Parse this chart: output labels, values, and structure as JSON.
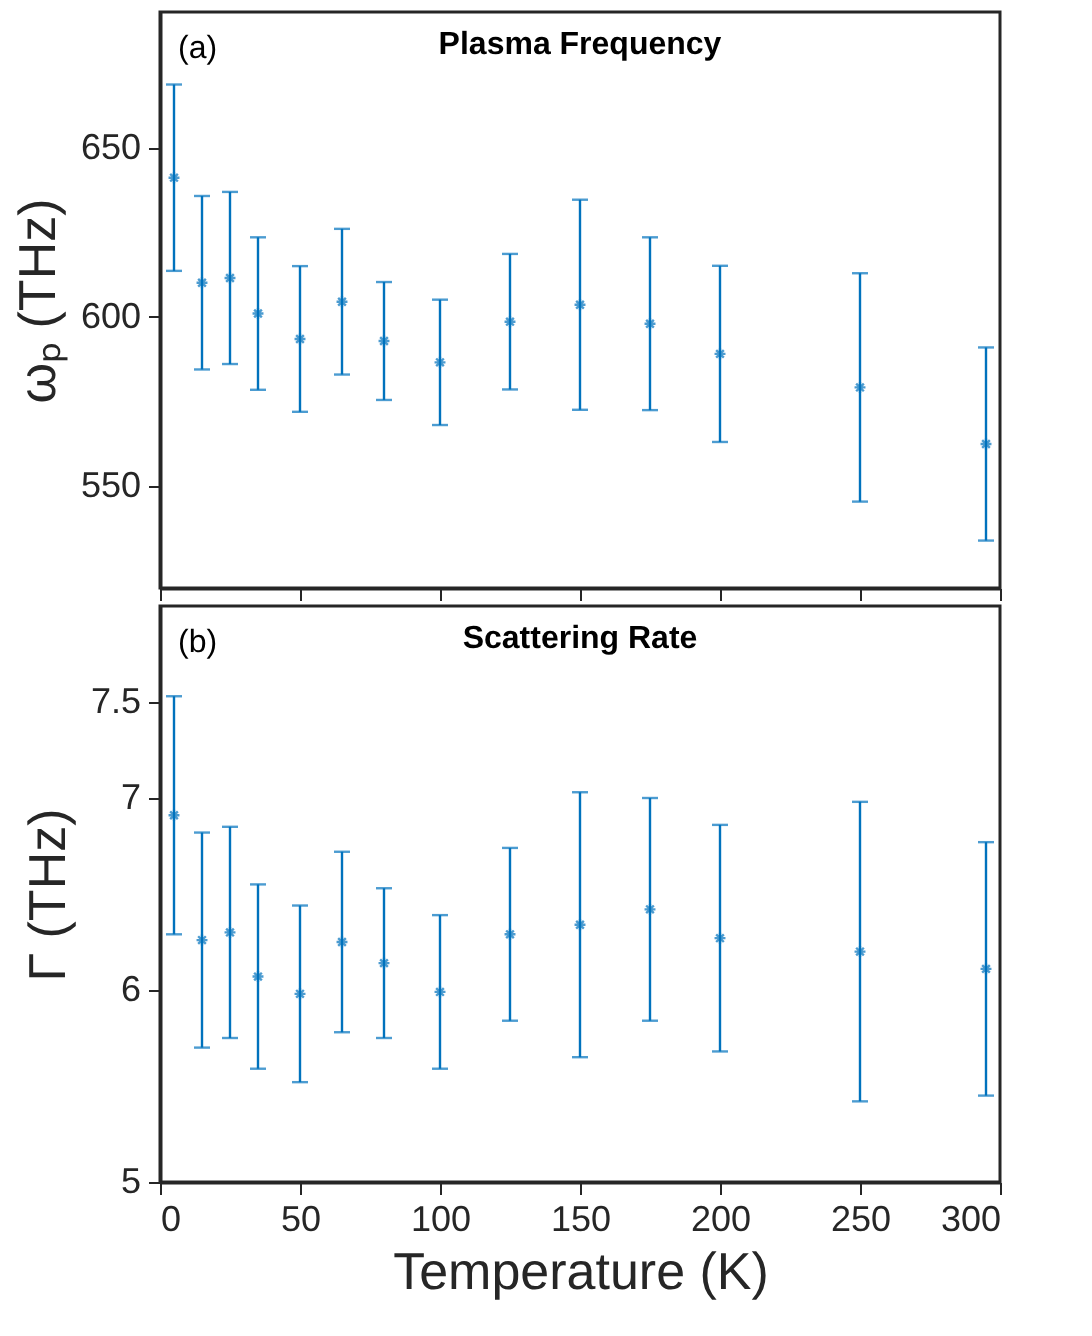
{
  "chart_data": [
    {
      "type": "scatter",
      "title": "Plasma Frequency",
      "ylabel": "ωₚ (THz)",
      "annotations": [
        "(a)"
      ],
      "color": "#0072bd",
      "marker": "cross",
      "x": [
        5,
        15,
        25,
        35,
        50,
        65,
        80,
        100,
        125,
        150,
        175,
        200,
        250,
        295
      ],
      "values": [
        641.1,
        610.1,
        611.5,
        601.0,
        593.5,
        604.5,
        592.9,
        586.6,
        598.6,
        603.6,
        598.0,
        589.1,
        579.2,
        562.5
      ],
      "errors": [
        27.5,
        25.6,
        25.4,
        22.5,
        21.5,
        21.5,
        17.4,
        18.5,
        20.0,
        31.0,
        25.5,
        26.0,
        33.7,
        28.5
      ],
      "xlim": [
        0,
        300
      ],
      "xticks": [
        0,
        50,
        100,
        150,
        200,
        250,
        300
      ],
      "ylim": [
        520,
        690
      ],
      "yticks": [
        550,
        600,
        650
      ],
      "tick_labels": "y"
    },
    {
      "type": "scatter",
      "title": "Scattering Rate",
      "ylabel": "Γ (THz)",
      "xlabel": "Temperature (K)",
      "annotations": [
        "(b)"
      ],
      "color": "#0072bd",
      "marker": "cross",
      "x": [
        5,
        15,
        25,
        35,
        50,
        65,
        80,
        100,
        125,
        150,
        175,
        200,
        250,
        295
      ],
      "values": [
        6.91,
        6.26,
        6.3,
        6.07,
        5.98,
        6.25,
        6.14,
        5.99,
        6.29,
        6.34,
        6.42,
        6.27,
        6.2,
        6.11
      ],
      "errors": [
        0.62,
        0.56,
        0.55,
        0.48,
        0.46,
        0.47,
        0.39,
        0.4,
        0.45,
        0.69,
        0.58,
        0.59,
        0.78,
        0.66
      ],
      "xlim": [
        0,
        300
      ],
      "xticks": [
        0,
        50,
        100,
        150,
        200,
        250,
        300
      ],
      "ylim": [
        5,
        8
      ],
      "yticks": [
        5,
        6,
        7,
        7.5
      ]
    }
  ]
}
